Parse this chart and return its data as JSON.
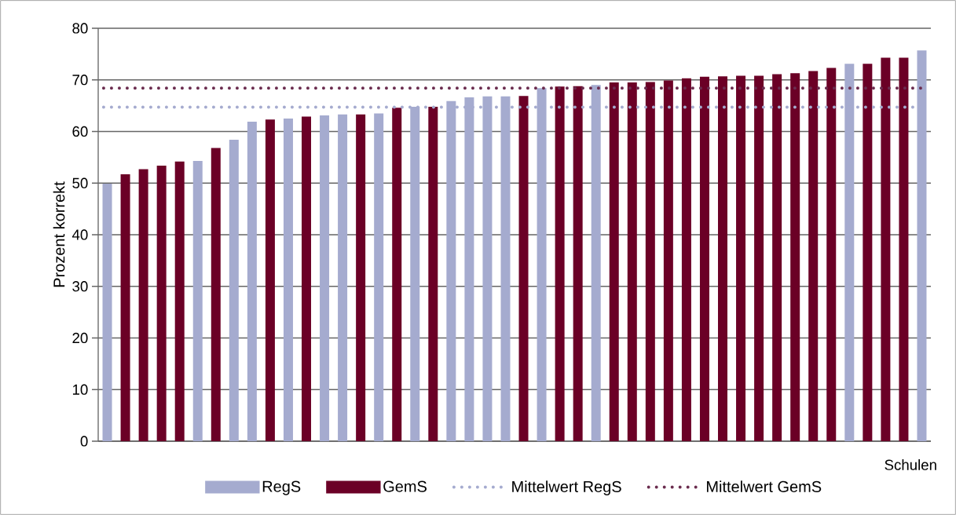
{
  "chart_data": {
    "type": "bar",
    "ylabel": "Prozent korrekt",
    "xlabel": "Schulen",
    "categories": [
      null,
      null,
      null,
      null,
      null,
      null,
      null,
      null,
      null,
      null,
      null,
      null,
      null,
      null,
      null,
      null,
      null,
      null,
      null,
      null,
      null,
      null,
      null,
      null,
      null,
      null,
      null,
      null,
      null,
      null,
      null,
      null,
      null,
      null,
      null,
      null,
      null,
      null,
      null,
      null,
      null,
      null,
      null,
      null,
      null,
      null
    ],
    "series": [
      {
        "name": "RegS",
        "color": "#a5abcf",
        "values": [
          49.9,
          null,
          null,
          null,
          null,
          54.3,
          null,
          58.4,
          61.9,
          null,
          62.5,
          null,
          63.1,
          63.3,
          null,
          63.5,
          null,
          64.8,
          null,
          65.9,
          66.6,
          66.8,
          66.8,
          null,
          68.4,
          null,
          null,
          69.0,
          null,
          null,
          null,
          null,
          null,
          null,
          null,
          null,
          null,
          null,
          null,
          null,
          null,
          73.1,
          null,
          null,
          null,
          75.7
        ]
      },
      {
        "name": "GemS",
        "color": "#6b0026",
        "values": [
          null,
          51.7,
          52.7,
          53.4,
          54.2,
          null,
          56.8,
          null,
          null,
          62.3,
          null,
          62.9,
          null,
          null,
          63.3,
          null,
          64.6,
          null,
          64.8,
          null,
          null,
          null,
          null,
          66.9,
          null,
          68.7,
          68.8,
          null,
          69.5,
          69.5,
          69.6,
          69.9,
          70.3,
          70.6,
          70.7,
          70.8,
          70.8,
          71.1,
          71.3,
          71.7,
          72.3,
          null,
          73.1,
          74.3,
          74.3,
          null
        ]
      }
    ],
    "ref_lines": [
      {
        "axis": "y",
        "value": 64.7,
        "label": "Mittelwert RegS",
        "color": "#a5abcf",
        "line_style": "dotted"
      },
      {
        "axis": "y",
        "value": 68.4,
        "label": "Mittelwert GemS",
        "color": "#6b2d4f",
        "line_style": "dotted"
      }
    ],
    "ylim": [
      0,
      80
    ],
    "yticks": [
      0,
      10,
      20,
      30,
      40,
      50,
      60,
      70,
      80
    ],
    "grid": "y",
    "legend": "bottom",
    "tick_labels": "y"
  }
}
